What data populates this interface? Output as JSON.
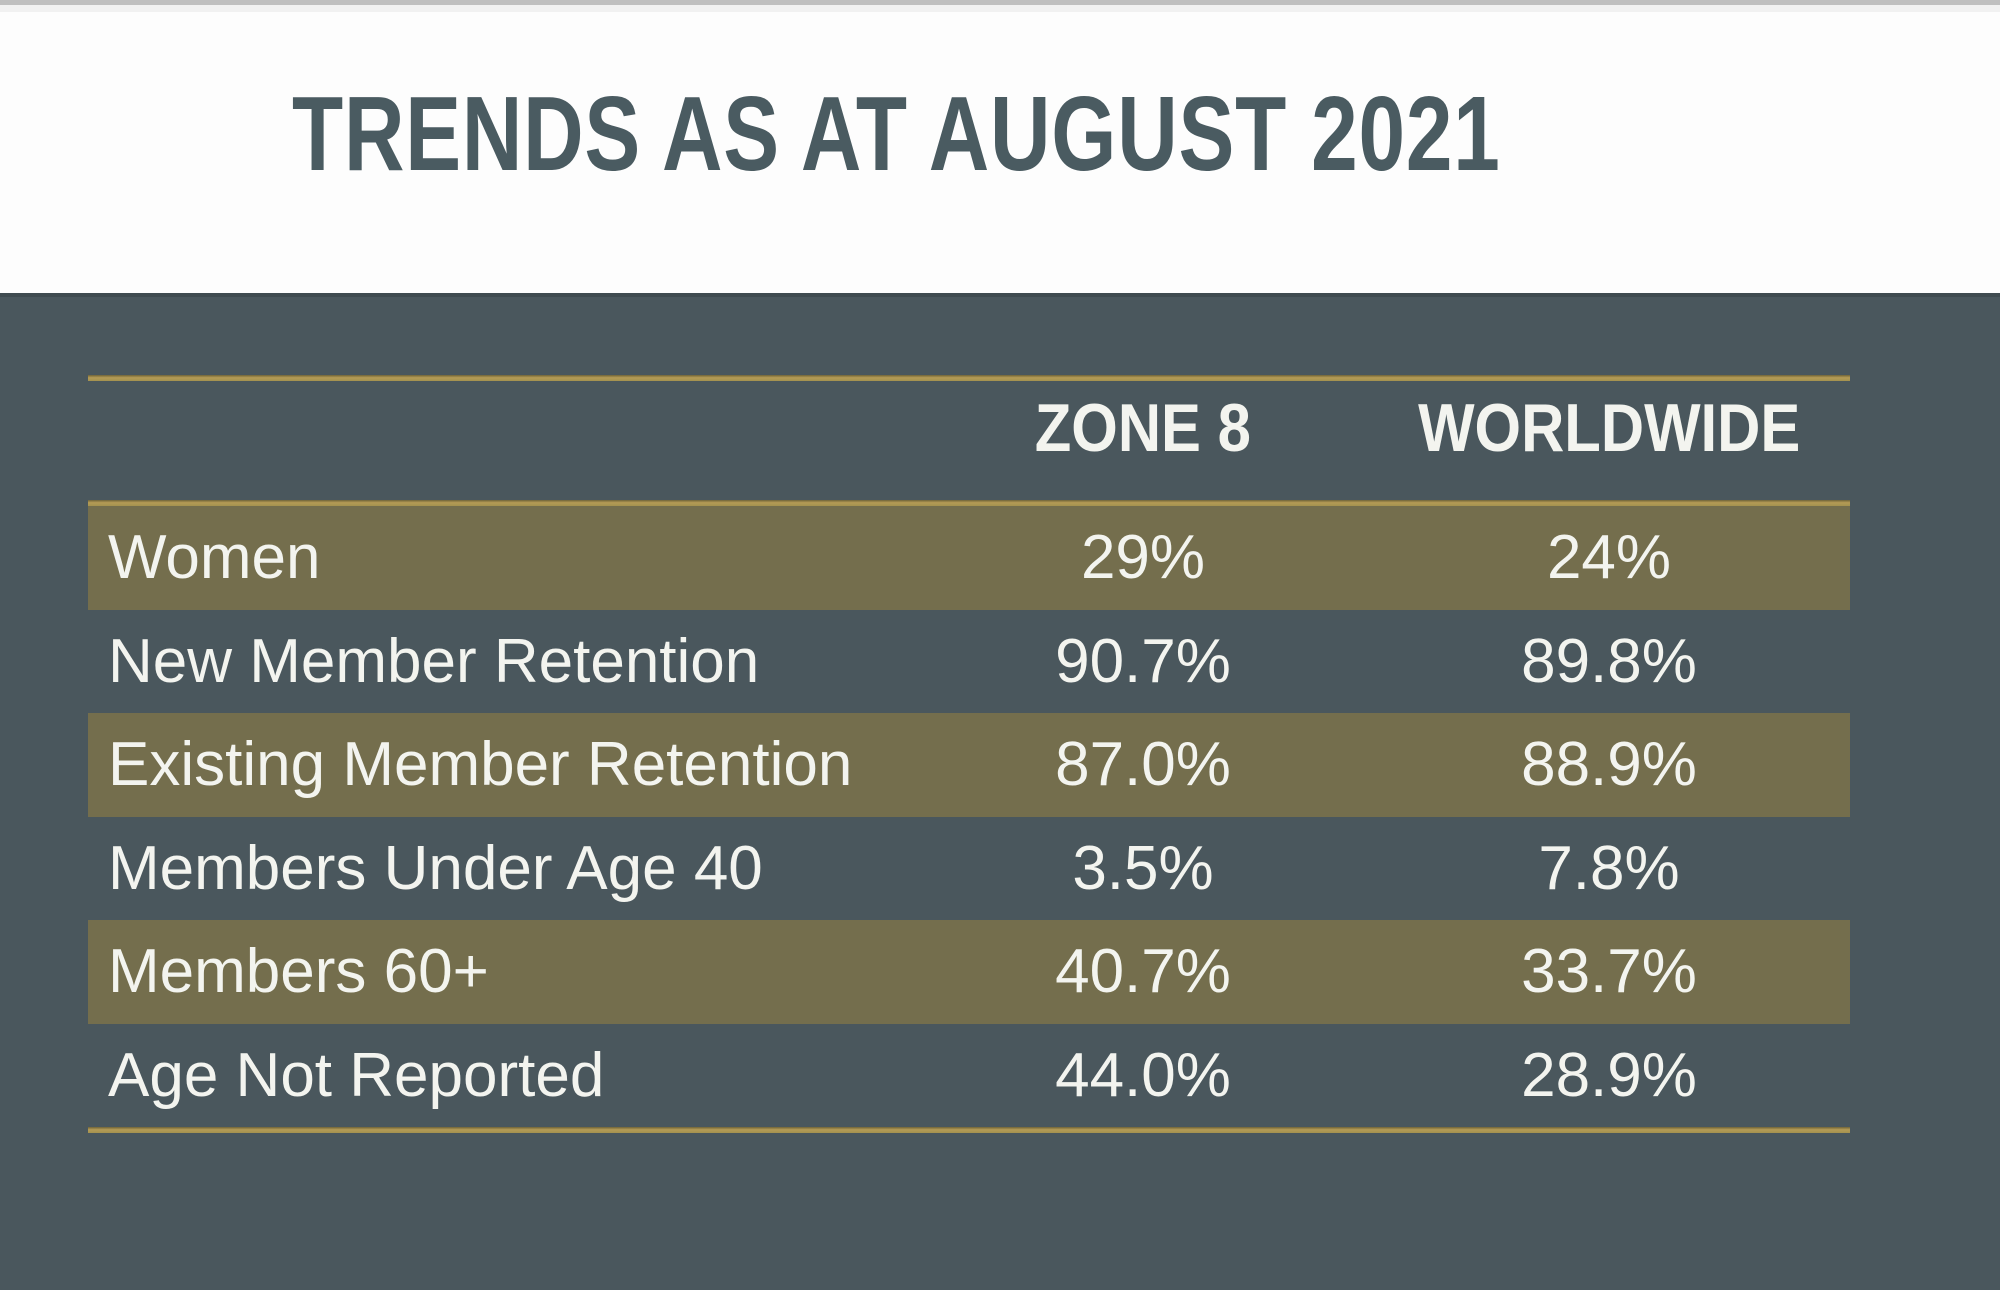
{
  "slide": {
    "title": "TRENDS AS AT AUGUST 2021"
  },
  "table": {
    "header": {
      "zone8": "ZONE 8",
      "worldwide": "WORLDWIDE"
    },
    "rows": [
      {
        "label": "Women",
        "zone8": "29%",
        "worldwide": "24%",
        "highlight": true
      },
      {
        "label": "New Member Retention",
        "zone8": "90.7%",
        "worldwide": "89.8%",
        "highlight": false
      },
      {
        "label": "Existing Member Retention",
        "zone8": "87.0%",
        "worldwide": "88.9%",
        "highlight": true
      },
      {
        "label": "Members Under Age 40",
        "zone8": "3.5%",
        "worldwide": "7.8%",
        "highlight": false
      },
      {
        "label": "Members 60+",
        "zone8": "40.7%",
        "worldwide": "33.7%",
        "highlight": true
      },
      {
        "label": "Age Not Reported",
        "zone8": "44.0%",
        "worldwide": "28.9%",
        "highlight": false
      }
    ]
  },
  "colors": {
    "body_background": "#4a575d",
    "banner_background": "#fdfdfd",
    "highlight_band": "#746e4d",
    "gold_accent": "#a3914f",
    "title_text": "#4a5b61",
    "table_text": "#f3f4ef"
  },
  "chart_data": {
    "type": "table",
    "title": "TRENDS AS AT AUGUST 2021",
    "columns": [
      "",
      "ZONE 8",
      "WORLDWIDE"
    ],
    "rows": [
      [
        "Women",
        "29%",
        "24%"
      ],
      [
        "New Member Retention",
        "90.7%",
        "89.8%"
      ],
      [
        "Existing Member Retention",
        "87.0%",
        "88.9%"
      ],
      [
        "Members Under Age 40",
        "3.5%",
        "7.8%"
      ],
      [
        "Members 60+",
        "40.7%",
        "33.7%"
      ],
      [
        "Age Not Reported",
        "44.0%",
        "28.9%"
      ]
    ]
  }
}
